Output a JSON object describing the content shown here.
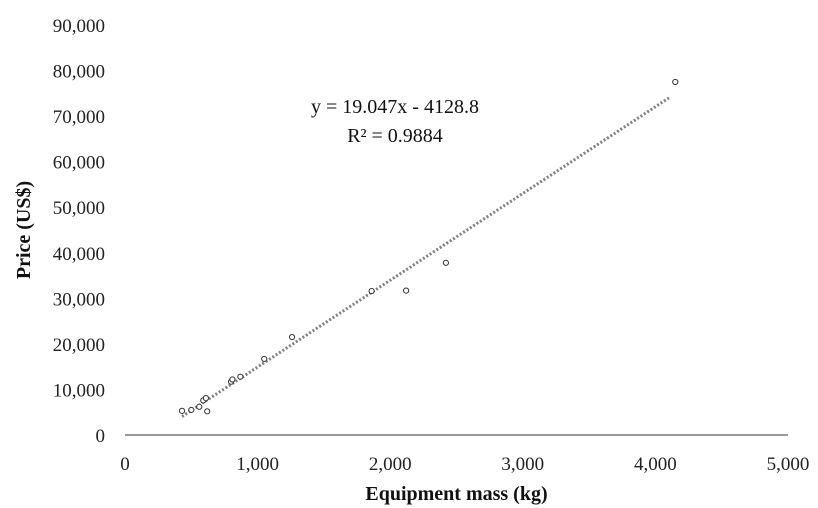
{
  "chart_data": {
    "type": "scatter",
    "title": "",
    "xlabel": "Equipment mass (kg)",
    "ylabel": "Price (US$)",
    "xlim": [
      0,
      5000
    ],
    "ylim": [
      0,
      90000
    ],
    "x_ticks": [
      0,
      1000,
      2000,
      3000,
      4000,
      5000
    ],
    "y_ticks": [
      0,
      10000,
      20000,
      30000,
      40000,
      50000,
      60000,
      70000,
      80000,
      90000
    ],
    "x_tick_labels": [
      "0",
      "1,000",
      "2,000",
      "3,000",
      "4,000",
      "5,000"
    ],
    "y_tick_labels": [
      "0",
      "10,000",
      "20,000",
      "30,000",
      "40,000",
      "50,000",
      "60,000",
      "70,000",
      "80,000",
      "90,000"
    ],
    "grid": false,
    "series": [
      {
        "marker": "open-circle",
        "color": "#333333",
        "points": [
          {
            "x": 430,
            "y": 5300
          },
          {
            "x": 500,
            "y": 5500
          },
          {
            "x": 560,
            "y": 6200
          },
          {
            "x": 590,
            "y": 7600
          },
          {
            "x": 610,
            "y": 8100
          },
          {
            "x": 620,
            "y": 5200
          },
          {
            "x": 800,
            "y": 11700
          },
          {
            "x": 810,
            "y": 12200
          },
          {
            "x": 870,
            "y": 12800
          },
          {
            "x": 1050,
            "y": 16700
          },
          {
            "x": 1260,
            "y": 21500
          },
          {
            "x": 1860,
            "y": 31600
          },
          {
            "x": 2120,
            "y": 31700
          },
          {
            "x": 2420,
            "y": 37800
          },
          {
            "x": 4150,
            "y": 77500
          }
        ]
      }
    ],
    "trendline": {
      "type": "linear",
      "style": "dotted",
      "color": "#808080",
      "slope": 19.047,
      "intercept": -4128.8,
      "x_range": [
        430,
        4110
      ]
    },
    "annotations": [
      "y = 19.047x - 4128.8",
      "R² = 0.9884"
    ]
  }
}
